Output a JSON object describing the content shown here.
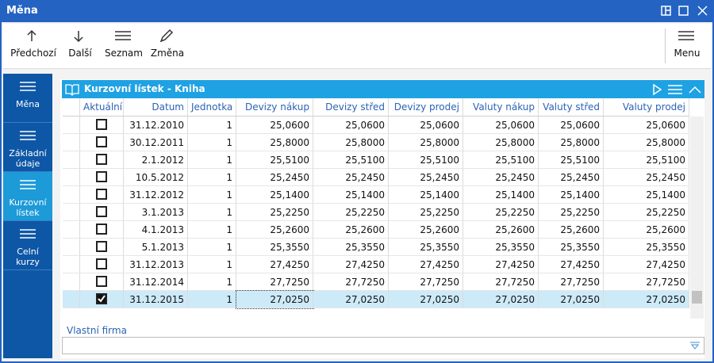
{
  "window": {
    "title": "Měna"
  },
  "toolbar": {
    "buttons": [
      "Předchozí",
      "Další",
      "Seznam",
      "Změna"
    ],
    "menu": "Menu"
  },
  "sidebar": {
    "items": [
      "Měna",
      "Základní údaje",
      "Kurzovní lístek",
      "Celní kurzy"
    ],
    "active": 2
  },
  "panel": {
    "title": "Kurzovní lístek - Kniha"
  },
  "table": {
    "columns": [
      "Aktuální",
      "Datum",
      "Jednotka",
      "Devizy nákup",
      "Devizy střed",
      "Devizy prodej",
      "Valuty nákup",
      "Valuty střed",
      "Valuty prodej"
    ],
    "rows": [
      {
        "checked": false,
        "cells": [
          "31.12.2010",
          "1",
          "25,0600",
          "25,0600",
          "25,0600",
          "25,0600",
          "25,0600",
          "25,0600"
        ]
      },
      {
        "checked": false,
        "cells": [
          "30.12.2011",
          "1",
          "25,8000",
          "25,8000",
          "25,8000",
          "25,8000",
          "25,8000",
          "25,8000"
        ]
      },
      {
        "checked": false,
        "cells": [
          "2.1.2012",
          "1",
          "25,5100",
          "25,5100",
          "25,5100",
          "25,5100",
          "25,5100",
          "25,5100"
        ]
      },
      {
        "checked": false,
        "cells": [
          "10.5.2012",
          "1",
          "25,2450",
          "25,2450",
          "25,2450",
          "25,2450",
          "25,2450",
          "25,2450"
        ]
      },
      {
        "checked": false,
        "cells": [
          "31.12.2012",
          "1",
          "25,1400",
          "25,1400",
          "25,1400",
          "25,1400",
          "25,1400",
          "25,1400"
        ]
      },
      {
        "checked": false,
        "cells": [
          "3.1.2013",
          "1",
          "25,2250",
          "25,2250",
          "25,2250",
          "25,2250",
          "25,2250",
          "25,2250"
        ]
      },
      {
        "checked": false,
        "cells": [
          "4.1.2013",
          "1",
          "25,2600",
          "25,2600",
          "25,2600",
          "25,2600",
          "25,2600",
          "25,2600"
        ]
      },
      {
        "checked": false,
        "cells": [
          "5.1.2013",
          "1",
          "25,3550",
          "25,3550",
          "25,3550",
          "25,3550",
          "25,3550",
          "25,3550"
        ]
      },
      {
        "checked": false,
        "cells": [
          "31.12.2013",
          "1",
          "27,4250",
          "27,4250",
          "27,4250",
          "27,4250",
          "27,4250",
          "27,4250"
        ]
      },
      {
        "checked": false,
        "cells": [
          "31.12.2014",
          "1",
          "27,7250",
          "27,7250",
          "27,7250",
          "27,7250",
          "27,7250",
          "27,7250"
        ]
      },
      {
        "checked": true,
        "selected": true,
        "cells": [
          "31.12.2015",
          "1",
          "27,0250",
          "27,0250",
          "27,0250",
          "27,0250",
          "27,0250",
          "27,0250"
        ]
      }
    ]
  },
  "field": {
    "label": "Vlastní firma"
  }
}
